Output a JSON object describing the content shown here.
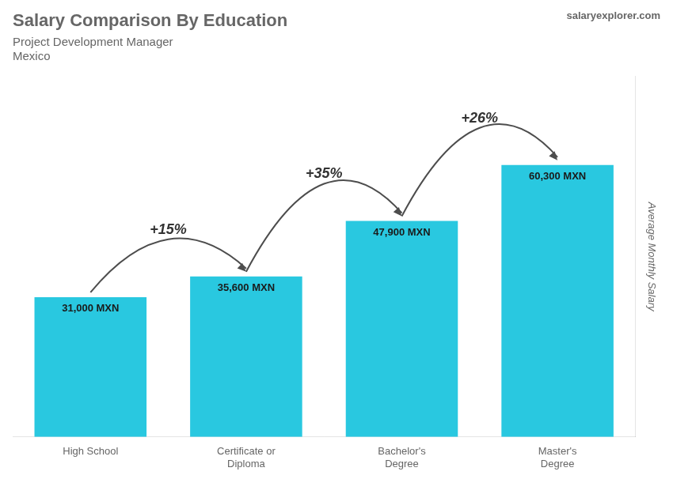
{
  "chart_data": {
    "type": "bar",
    "title": "Salary Comparison By Education",
    "subtitle": [
      "Project Development Manager",
      "Mexico"
    ],
    "ylabel": "Average Monthly Salary",
    "categories": [
      "High School",
      "Certificate or\nDiploma",
      "Bachelor's\nDegree",
      "Master's\nDegree"
    ],
    "values": [
      31000,
      35600,
      47900,
      60300
    ],
    "value_labels": [
      "31,000 MXN",
      "35,600 MXN",
      "47,900 MXN",
      "60,300 MXN"
    ],
    "data_labels": true,
    "color": "#29c8e0",
    "ylim": [
      0,
      80000
    ],
    "grid": false,
    "tick_labels": "x",
    "annotations": [
      {
        "text": "+15%",
        "from": "High School",
        "to": "Certificate or\nDiploma"
      },
      {
        "text": "+35%",
        "from": "Certificate or\nDiploma",
        "to": "Bachelor's\nDegree"
      },
      {
        "text": "+26%",
        "from": "Bachelor's\nDegree",
        "to": "Master's\nDegree"
      },
      {
        "text": "salaryexplorer.com"
      }
    ]
  }
}
